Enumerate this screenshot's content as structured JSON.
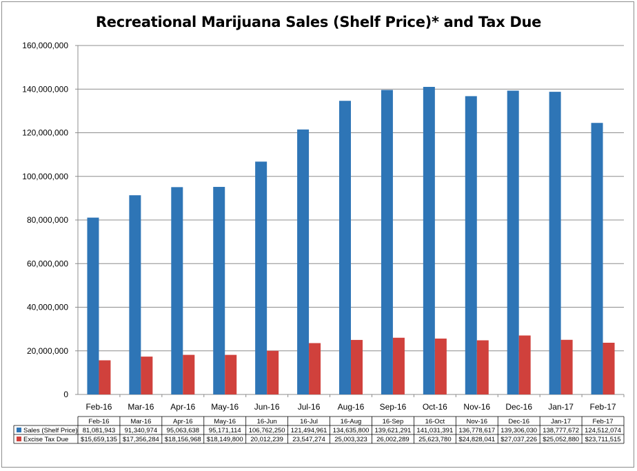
{
  "chart_data": {
    "type": "bar",
    "title": "Recreational Marijuana Sales (Shelf Price)* and Tax Due",
    "xlabel": "",
    "ylabel": "",
    "ylim": [
      0,
      160000000
    ],
    "y_ticks": [
      "0",
      "20,000,000",
      "40,000,000",
      "60,000,000",
      "80,000,000",
      "100,000,000",
      "120,000,000",
      "140,000,000",
      "160,000,000"
    ],
    "grid": true,
    "categories": [
      "Feb-16",
      "Mar-16",
      "Apr-16",
      "May-16",
      "Jun-16",
      "Jul-16",
      "Aug-16",
      "Sep-16",
      "Oct-16",
      "Nov-16",
      "Dec-16",
      "Jan-17",
      "Feb-17"
    ],
    "table_headers": [
      "Feb-16",
      "Mar-16",
      "Apr-16",
      "May-16",
      "16-Jun",
      "16-Jul",
      "16-Aug",
      "16-Sep",
      "16-Oct",
      "Nov-16",
      "Dec-16",
      "Jan-17",
      "Feb-17"
    ],
    "series": [
      {
        "name": "Sales (Shelf Price)",
        "color": "#2e75b6",
        "values": [
          81081943,
          91340974,
          95063638,
          95171114,
          106762250,
          121494961,
          134635800,
          139621291,
          141031391,
          136778617,
          139306030,
          138777672,
          124512074
        ],
        "labels": [
          "81,081,943",
          "91,340,974",
          "95,063,638",
          "95,171,114",
          "106,762,250",
          "121,494,961",
          "134,635,800",
          "139,621,291",
          "141,031,391",
          "136,778,617",
          "139,306,030",
          "138,777,672",
          "124,512,074"
        ]
      },
      {
        "name": "Excise Tax Due",
        "color": "#d0413c",
        "values": [
          15659135,
          17356284,
          18156968,
          18149800,
          20012239,
          23547274,
          25003323,
          26002289,
          25623780,
          24828041,
          27037226,
          25052880,
          23711515
        ],
        "labels": [
          "$15,659,135",
          "$17,356,284",
          "$18,156,968",
          "$18,149,800",
          "20,012,239",
          "23,547,274",
          "25,003,323",
          "26,002,289",
          "25,623,780",
          "$24,828,041",
          "$27,037,226",
          "$25,052,880",
          "$23,711,515"
        ]
      }
    ],
    "legend": "data-table"
  }
}
